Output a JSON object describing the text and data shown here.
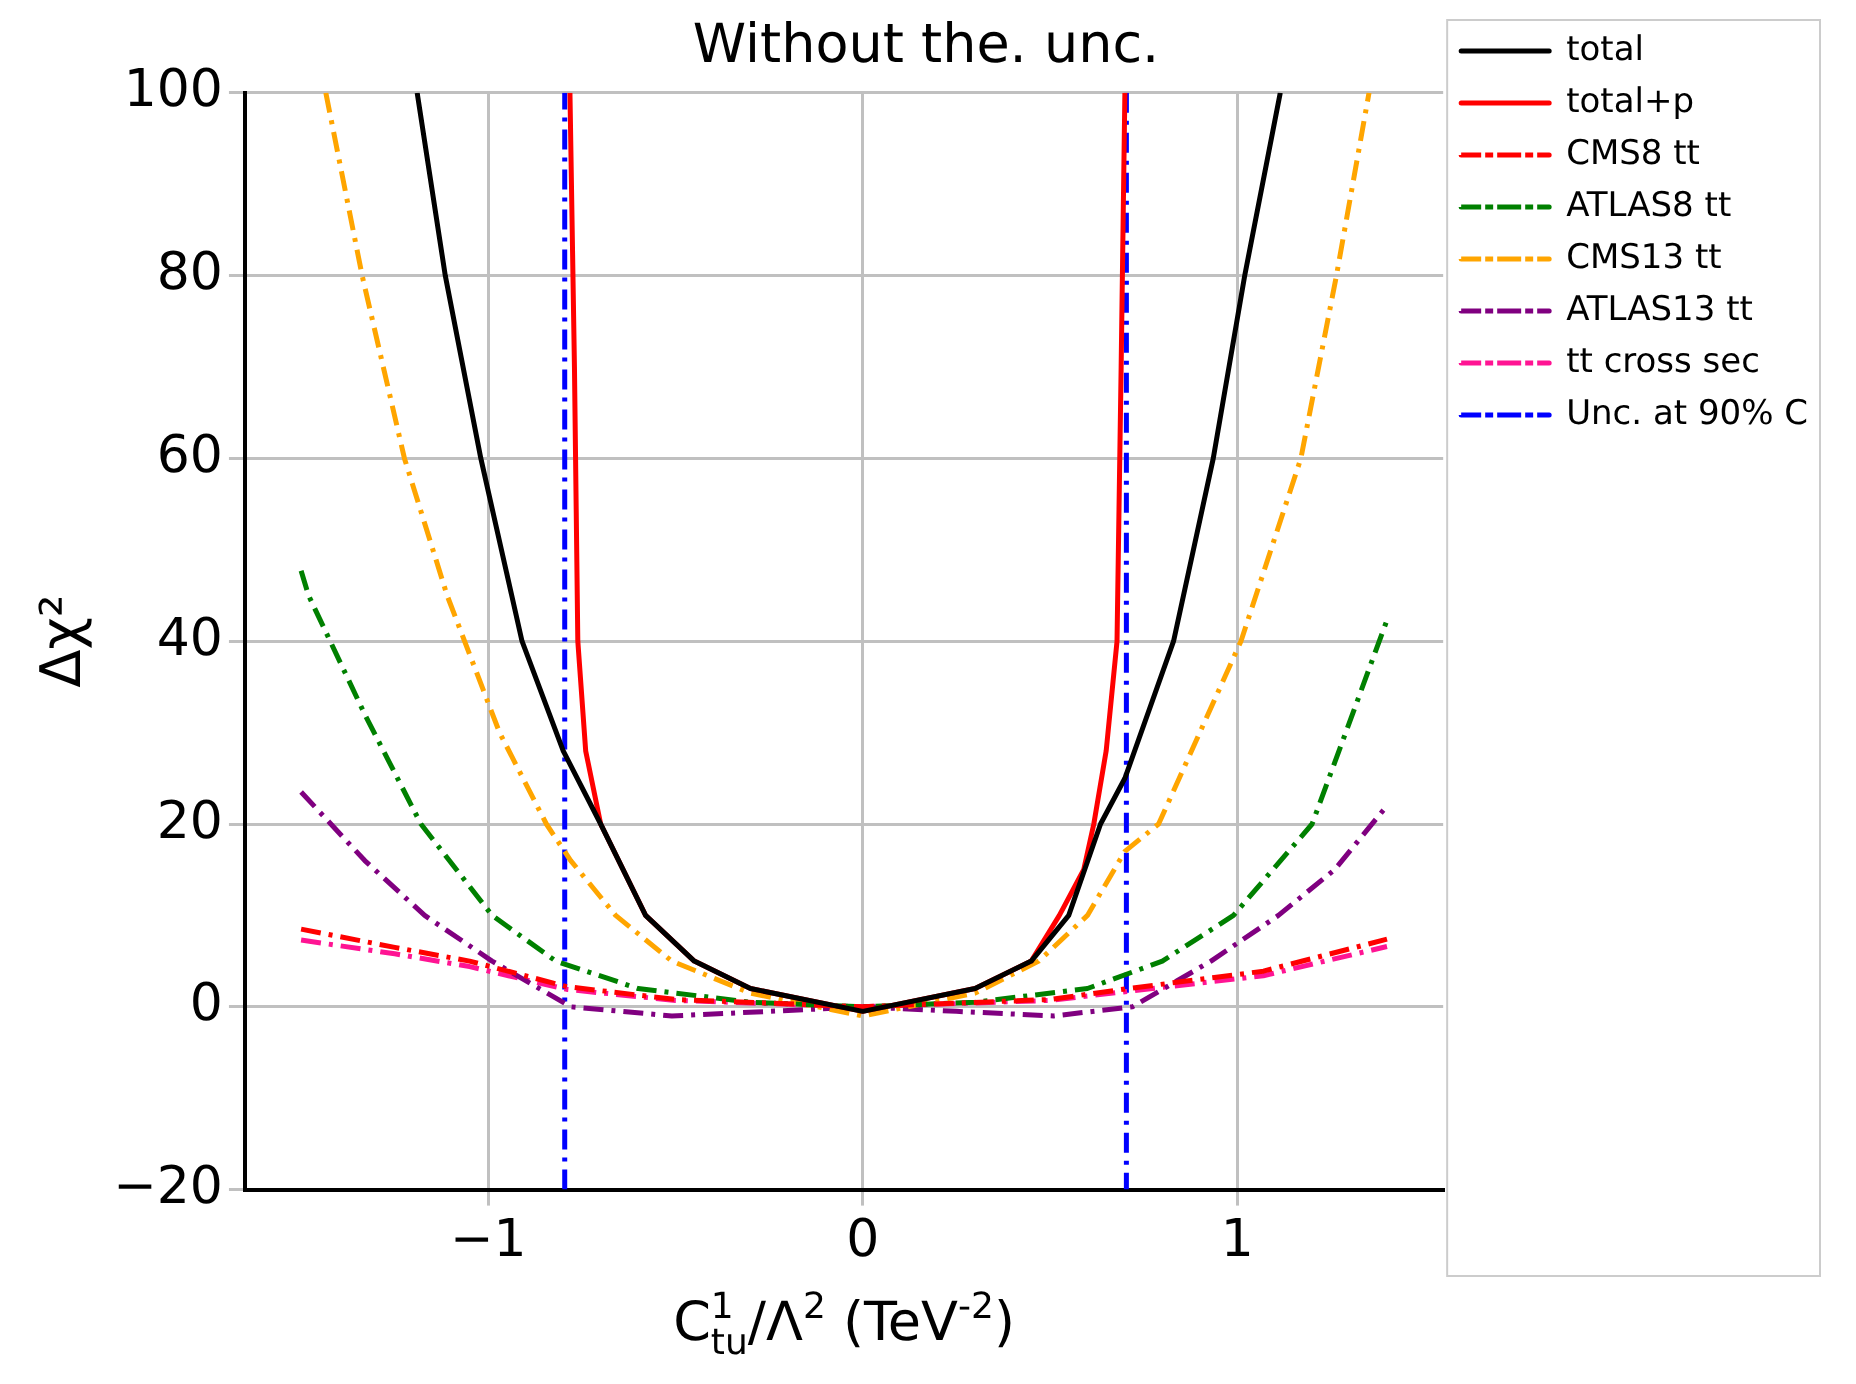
{
  "chart_data": {
    "type": "line",
    "title": "Without the. unc.",
    "xlabel": "C$_{tu}$$^{1}$/Λ$^{2}$ (TeV$^{-2}$)",
    "ylabel": "Δχ²",
    "xlim": [
      -1.65,
      1.55
    ],
    "xticks": [
      -1,
      0,
      1
    ],
    "ylim": [
      -20,
      100
    ],
    "yticks": [
      -20,
      0,
      20,
      40,
      60,
      80,
      100
    ],
    "grid": true,
    "legend": "top right",
    "series": [
      {
        "name": "total",
        "color": "#000000",
        "line_style": "solid",
        "x": [
          -1.19,
          -1.115,
          -1.02,
          -0.91,
          -0.8,
          -0.7,
          -0.58,
          -0.45,
          -0.3,
          0,
          0.3,
          0.45,
          0.55,
          0.635,
          0.7,
          0.83,
          0.936,
          1.02,
          1.115
        ],
        "values": [
          100,
          80,
          60,
          40,
          28,
          20,
          10,
          5,
          2,
          -0.5,
          2,
          5,
          10,
          20,
          25,
          40,
          60,
          80,
          100
        ]
      },
      {
        "name": "total+p",
        "color": "#ff0000",
        "line_style": "solid",
        "x": [
          -0.782,
          -0.77,
          -0.761,
          -0.74,
          -0.7,
          -0.58,
          -0.45,
          -0.3,
          0,
          0.3,
          0.45,
          0.525,
          0.59,
          0.617,
          0.65,
          0.679,
          0.69,
          0.7
        ],
        "values": [
          100,
          70,
          40,
          28,
          20,
          10,
          5,
          2,
          -0.5,
          2,
          5,
          10,
          15,
          20,
          28,
          40,
          70,
          100
        ]
      },
      {
        "name": "CMS8 tt",
        "color": "#ff0000",
        "line_style": "dashed",
        "x": [
          -1.5,
          -1.25,
          -1.05,
          -0.79,
          -0.5,
          0,
          0.5,
          0.71,
          1.07,
          1.4
        ],
        "values": [
          8.5,
          6.5,
          5,
          2.2,
          0.8,
          0,
          0.8,
          2,
          3.9,
          7.4
        ]
      },
      {
        "name": "ATLAS8 tt",
        "color": "#008000",
        "line_style": "dashed",
        "x": [
          -1.5,
          -1.48,
          -1.33,
          -1.18,
          -0.99,
          -0.82,
          -0.6,
          -0.3,
          0,
          0.3,
          0.6,
          0.8,
          0.99,
          1.2,
          1.4
        ],
        "values": [
          47.7,
          45,
          32,
          20,
          10,
          5,
          2,
          0.5,
          0,
          0.5,
          2,
          5,
          10,
          20,
          42.3
        ]
      },
      {
        "name": "CMS13 tt",
        "color": "#ffa500",
        "line_style": "dashed",
        "x": [
          -1.434,
          -1.337,
          -1.224,
          -1.11,
          -0.97,
          -0.845,
          -0.78,
          -0.66,
          -0.51,
          -0.3,
          0,
          0.3,
          0.47,
          0.6,
          0.7,
          0.79,
          0.9,
          1.01,
          1.17,
          1.265,
          1.352
        ],
        "values": [
          100,
          80,
          60,
          45,
          30,
          20,
          16,
          10,
          5,
          1.5,
          -1,
          1.5,
          5,
          10,
          17,
          20,
          30,
          40,
          60,
          80,
          100
        ]
      },
      {
        "name": "ATLAS13 tt",
        "color": "#800080",
        "line_style": "dashed",
        "x": [
          -1.5,
          -1.33,
          -1.17,
          -0.99,
          -0.78,
          -0.51,
          -0.25,
          0,
          0.25,
          0.51,
          0.72,
          0.93,
          1.11,
          1.26,
          1.4
        ],
        "values": [
          23.5,
          16,
          10,
          5,
          0,
          -1,
          -0.5,
          0,
          -0.5,
          -1,
          0,
          5,
          10,
          15,
          22
        ]
      },
      {
        "name": "tt cross sec",
        "color": "#ff1493",
        "line_style": "dashed",
        "x": [
          -1.5,
          -1.25,
          -1.05,
          -0.79,
          -0.5,
          0,
          0.5,
          0.71,
          1.07,
          1.4
        ],
        "values": [
          7.3,
          5.8,
          4.4,
          1.9,
          0.7,
          0,
          0.7,
          1.7,
          3.4,
          6.6
        ]
      },
      {
        "name": "Unc. at 90% C",
        "color": "#0000ff",
        "line_style": "dashed",
        "x": [
          -0.796,
          -0.796,
          0,
          0.704,
          0.704
        ],
        "values": [
          -20,
          100,
          null,
          100,
          -20
        ]
      }
    ]
  }
}
